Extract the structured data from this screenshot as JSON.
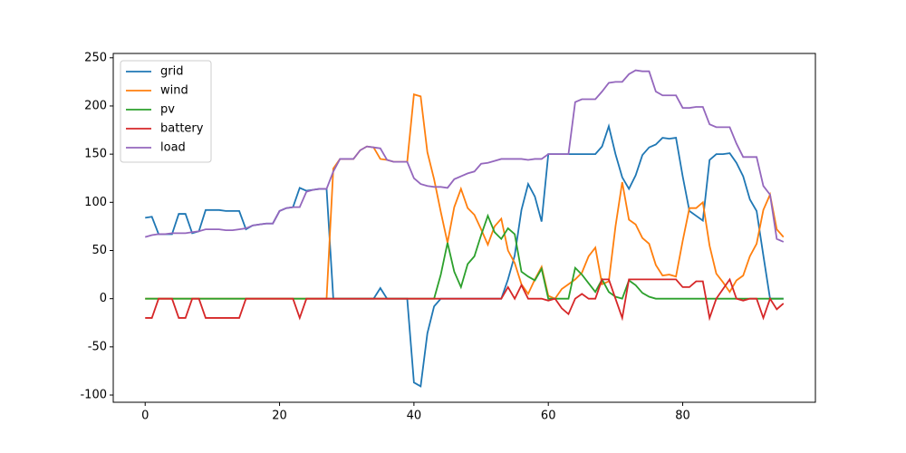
{
  "chart_data": {
    "type": "line",
    "x": [
      0,
      1,
      2,
      3,
      4,
      5,
      6,
      7,
      8,
      9,
      10,
      11,
      12,
      13,
      14,
      15,
      16,
      17,
      18,
      19,
      20,
      21,
      22,
      23,
      24,
      25,
      26,
      27,
      28,
      29,
      30,
      31,
      32,
      33,
      34,
      35,
      36,
      37,
      38,
      39,
      40,
      41,
      42,
      43,
      44,
      45,
      46,
      47,
      48,
      49,
      50,
      51,
      52,
      53,
      54,
      55,
      56,
      57,
      58,
      59,
      60,
      61,
      62,
      63,
      64,
      65,
      66,
      67,
      68,
      69,
      70,
      71,
      72,
      73,
      74,
      75,
      76,
      77,
      78,
      79,
      80,
      81,
      82,
      83,
      84,
      85,
      86,
      87,
      88,
      89,
      90,
      91,
      92,
      93,
      94,
      95
    ],
    "series": [
      {
        "name": "grid",
        "color": "#1f77b4",
        "values": [
          84,
          85,
          67,
          67,
          67,
          88,
          88,
          68,
          70,
          92,
          92,
          92,
          91,
          91,
          91,
          72,
          76,
          77,
          78,
          78,
          91,
          94,
          95,
          115,
          112,
          113,
          114,
          114,
          0,
          0,
          0,
          0,
          0,
          0,
          0,
          11,
          0,
          0,
          0,
          0,
          -87,
          -91,
          -36,
          -8,
          0,
          0,
          0,
          0,
          0,
          0,
          0,
          0,
          0,
          0,
          20,
          45,
          92,
          119,
          106,
          80,
          150,
          150,
          150,
          150,
          150,
          150,
          150,
          150,
          158,
          179,
          150,
          126,
          114,
          128,
          149,
          157,
          160,
          167,
          166,
          167,
          127,
          91,
          86,
          81,
          144,
          150,
          150,
          151,
          141,
          127,
          103,
          91,
          45,
          0,
          0,
          0
        ]
      },
      {
        "name": "wind",
        "color": "#ff7f0e",
        "values": [
          0,
          0,
          0,
          0,
          0,
          0,
          0,
          0,
          0,
          0,
          0,
          0,
          0,
          0,
          0,
          0,
          0,
          0,
          0,
          0,
          0,
          0,
          0,
          0,
          0,
          0,
          0,
          0,
          135,
          145,
          145,
          145,
          154,
          158,
          157,
          145,
          144,
          142,
          142,
          142,
          212,
          210,
          152,
          124,
          90,
          58,
          95,
          114,
          94,
          87,
          72,
          56,
          75,
          83,
          50,
          37,
          15,
          5,
          20,
          33,
          3,
          0,
          10,
          15,
          20,
          27,
          44,
          53,
          15,
          18,
          75,
          121,
          82,
          77,
          63,
          57,
          35,
          24,
          25,
          23,
          60,
          94,
          94,
          100,
          55,
          26,
          17,
          7,
          19,
          24,
          44,
          57,
          92,
          108,
          72,
          64
        ]
      },
      {
        "name": "pv",
        "color": "#2ca02c",
        "values": [
          0,
          0,
          0,
          0,
          0,
          0,
          0,
          0,
          0,
          0,
          0,
          0,
          0,
          0,
          0,
          0,
          0,
          0,
          0,
          0,
          0,
          0,
          0,
          0,
          0,
          0,
          0,
          0,
          0,
          0,
          0,
          0,
          0,
          0,
          0,
          0,
          0,
          0,
          0,
          0,
          0,
          0,
          0,
          0,
          25,
          58,
          28,
          12,
          36,
          44,
          66,
          86,
          69,
          62,
          73,
          67,
          28,
          23,
          19,
          31,
          0,
          0,
          0,
          0,
          32,
          25,
          16,
          7,
          20,
          7,
          2,
          0,
          19,
          14,
          6,
          2,
          0,
          0,
          0,
          0,
          0,
          0,
          0,
          0,
          0,
          0,
          0,
          0,
          0,
          0,
          0,
          0,
          0,
          0,
          0,
          0
        ]
      },
      {
        "name": "battery",
        "color": "#d62728",
        "values": [
          -20,
          -20,
          0,
          0,
          0,
          -20,
          -20,
          0,
          0,
          -20,
          -20,
          -20,
          -20,
          -20,
          -20,
          0,
          0,
          0,
          0,
          0,
          0,
          0,
          0,
          -20,
          0,
          0,
          0,
          0,
          0,
          0,
          0,
          0,
          0,
          0,
          0,
          0,
          0,
          0,
          0,
          0,
          0,
          0,
          0,
          0,
          0,
          0,
          0,
          0,
          0,
          0,
          0,
          0,
          0,
          0,
          12,
          0,
          14,
          0,
          0,
          0,
          -2,
          0,
          -10,
          -16,
          0,
          5,
          0,
          0,
          20,
          20,
          0,
          -20,
          20,
          20,
          20,
          20,
          20,
          20,
          20,
          20,
          12,
          12,
          18,
          18,
          -20,
          0,
          10,
          20,
          0,
          -2,
          0,
          0,
          -20,
          0,
          -11,
          -5
        ]
      },
      {
        "name": "load",
        "color": "#9467bd",
        "values": [
          64,
          66,
          67,
          67,
          68,
          68,
          68,
          69,
          70,
          72,
          72,
          72,
          71,
          71,
          72,
          73,
          76,
          77,
          78,
          78,
          91,
          94,
          95,
          95,
          111,
          113,
          114,
          114,
          132,
          145,
          145,
          145,
          154,
          158,
          157,
          156,
          144,
          142,
          142,
          142,
          125,
          119,
          117,
          116,
          116,
          115,
          124,
          127,
          130,
          132,
          140,
          141,
          143,
          145,
          145,
          145,
          145,
          144,
          145,
          145,
          150,
          150,
          150,
          150,
          204,
          207,
          207,
          207,
          215,
          224,
          225,
          225,
          233,
          237,
          236,
          236,
          215,
          211,
          211,
          211,
          198,
          198,
          199,
          199,
          181,
          178,
          178,
          178,
          161,
          147,
          147,
          147,
          117,
          108,
          62,
          59
        ]
      }
    ],
    "xlim": [
      -4.75,
      99.75
    ],
    "ylim": [
      -107.5,
      254.5
    ],
    "xticks": [
      0,
      20,
      40,
      60,
      80
    ],
    "yticks": [
      -100,
      -50,
      0,
      50,
      100,
      150,
      200,
      250
    ],
    "legend": "upper left"
  }
}
